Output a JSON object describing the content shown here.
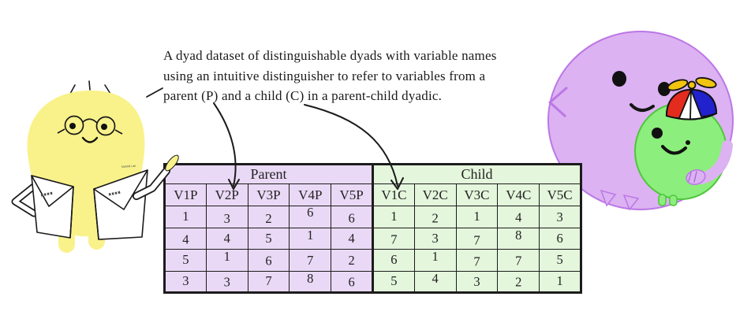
{
  "caption": {
    "lines": [
      "A dyad dataset of distinguishable dyads with variable names",
      "using an intuitive distinguisher to refer to variables from a",
      "parent (P) and a child (C) in a parent-child dyadic."
    ]
  },
  "table": {
    "group_headers": [
      "Parent",
      "Child"
    ],
    "columns": [
      "V1P",
      "V2P",
      "V3P",
      "V4P",
      "V5P",
      "V1C",
      "V2C",
      "V3C",
      "V4C",
      "V5C"
    ],
    "rows": [
      [
        "1",
        "3",
        "2",
        "6",
        "6",
        "1",
        "2",
        "1",
        "4",
        "3"
      ],
      [
        "4",
        "4",
        "5",
        "1",
        "4",
        "7",
        "3",
        "7",
        "8",
        "6"
      ],
      [
        "5",
        "1",
        "6",
        "7",
        "2",
        "6",
        "1",
        "7",
        "7",
        "5"
      ],
      [
        "3",
        "3",
        "7",
        "8",
        "6",
        "5",
        "4",
        "3",
        "2",
        "1"
      ]
    ],
    "colors": {
      "parent_bg": "#ead9f6",
      "child_bg": "#e4f6dc",
      "border": "#1c1c1c"
    }
  },
  "characters": {
    "scientist": {
      "coat_label": "MaNMl Lab",
      "body_color": "#f9f28a"
    },
    "parent_blob": {
      "body_color": "#dcb2f2",
      "outline_color": "#bc77e6"
    },
    "child_blob": {
      "body_color": "#8cee7c",
      "outline_color": "#4fc63c"
    },
    "hat": {
      "red": "#e32b1e",
      "blue": "#2121cd",
      "propeller_yellow": "#f1c40f"
    }
  }
}
